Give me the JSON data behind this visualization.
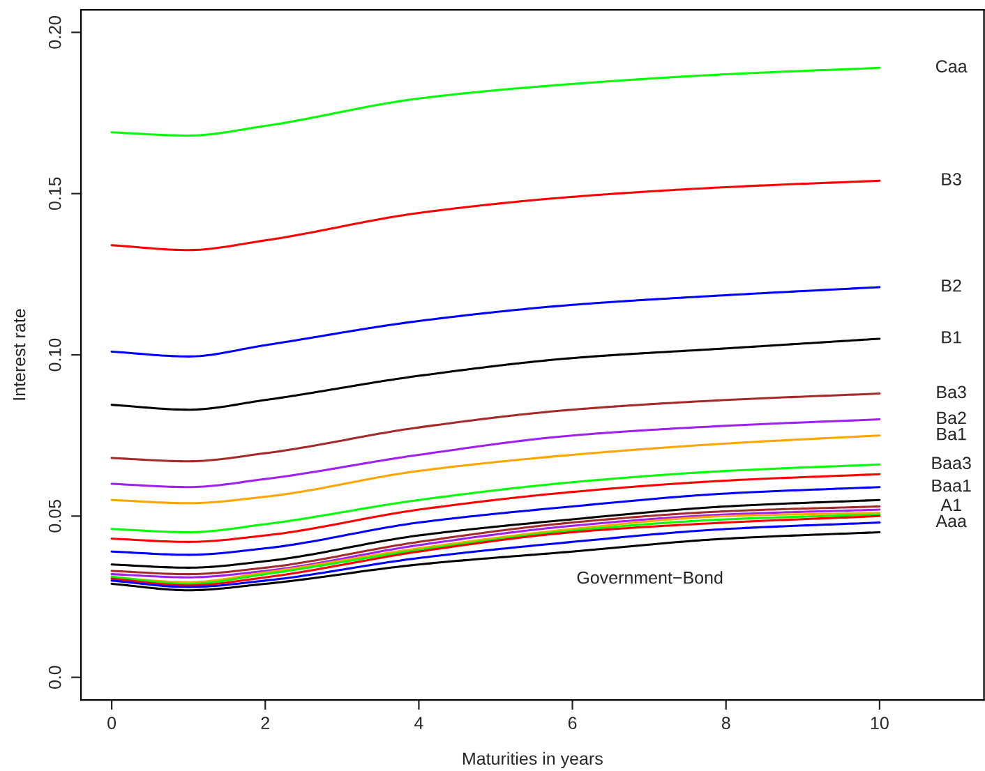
{
  "chart_data": {
    "type": "line",
    "xlabel": "Maturities in years",
    "ylabel": "Interest rate",
    "x": [
      0,
      1,
      2,
      4,
      6,
      8,
      10
    ],
    "series": [
      {
        "name": "Caa",
        "color": "#00ff00",
        "values": [
          0.169,
          0.168,
          0.171,
          0.1795,
          0.184,
          0.187,
          0.189
        ]
      },
      {
        "name": "B3",
        "color": "#ff0000",
        "values": [
          0.134,
          0.1325,
          0.1355,
          0.144,
          0.149,
          0.152,
          0.154
        ]
      },
      {
        "name": "B2",
        "color": "#0000ff",
        "values": [
          0.101,
          0.0995,
          0.103,
          0.1105,
          0.1155,
          0.1185,
          0.121
        ]
      },
      {
        "name": "B1",
        "color": "#000000",
        "values": [
          0.0845,
          0.083,
          0.086,
          0.0935,
          0.099,
          0.102,
          0.105
        ]
      },
      {
        "name": "Ba3",
        "color": "#a52a2a",
        "values": [
          0.068,
          0.067,
          0.0695,
          0.0775,
          0.083,
          0.086,
          0.088
        ]
      },
      {
        "name": "Ba2",
        "color": "#a020f0",
        "values": [
          0.06,
          0.059,
          0.0615,
          0.069,
          0.075,
          0.078,
          0.08
        ]
      },
      {
        "name": "Ba1",
        "color": "#ffa500",
        "values": [
          0.055,
          0.054,
          0.056,
          0.064,
          0.069,
          0.0725,
          0.075
        ]
      },
      {
        "name": "Baa3",
        "color": "#00ff00",
        "values": [
          0.046,
          0.045,
          0.0475,
          0.055,
          0.0605,
          0.064,
          0.066
        ]
      },
      {
        "color": "#ff0000",
        "values": [
          0.043,
          0.042,
          0.044,
          0.052,
          0.0575,
          0.061,
          0.063
        ]
      },
      {
        "name": "Baa1",
        "color": "#0000ff",
        "values": [
          0.039,
          0.038,
          0.04,
          0.048,
          0.053,
          0.057,
          0.059
        ]
      },
      {
        "color": "#000000",
        "values": [
          0.035,
          0.034,
          0.036,
          0.044,
          0.049,
          0.053,
          0.055
        ]
      },
      {
        "name": "A1",
        "color": "#a52a2a",
        "values": [
          0.033,
          0.032,
          0.034,
          0.042,
          0.048,
          0.0515,
          0.053
        ]
      },
      {
        "color": "#a020f0",
        "values": [
          0.032,
          0.031,
          0.033,
          0.041,
          0.047,
          0.0505,
          0.052
        ]
      },
      {
        "color": "#ffa500",
        "values": [
          0.031,
          0.0295,
          0.0325,
          0.04,
          0.046,
          0.05,
          0.051
        ]
      },
      {
        "color": "#00ff00",
        "values": [
          0.0312,
          0.029,
          0.032,
          0.0395,
          0.0455,
          0.049,
          0.0505
        ]
      },
      {
        "color": "#ff0000",
        "values": [
          0.0306,
          0.0285,
          0.031,
          0.039,
          0.045,
          0.048,
          0.05
        ]
      },
      {
        "name": "Aaa",
        "color": "#0000ff",
        "values": [
          0.03,
          0.028,
          0.03,
          0.037,
          0.042,
          0.046,
          0.048
        ]
      },
      {
        "color": "#000000",
        "values": [
          0.029,
          0.027,
          0.029,
          0.035,
          0.039,
          0.043,
          0.045
        ]
      }
    ],
    "annotations": [
      "Government−Bond"
    ],
    "xlim": [
      -0.4,
      11.36
    ],
    "ylim": [
      -0.007,
      0.207
    ],
    "xticks": [
      0,
      2,
      4,
      6,
      8,
      10
    ],
    "yticks": [
      {
        "value": 0,
        "label": "0.0"
      },
      {
        "value": 0.05,
        "label": "0.05"
      },
      {
        "value": 0.1,
        "label": "0.10"
      },
      {
        "value": 0.15,
        "label": "0.15"
      },
      {
        "value": 0.2,
        "label": "0.20"
      }
    ],
    "grid": false,
    "legend": false,
    "marker": "none",
    "line_style": "solid"
  }
}
